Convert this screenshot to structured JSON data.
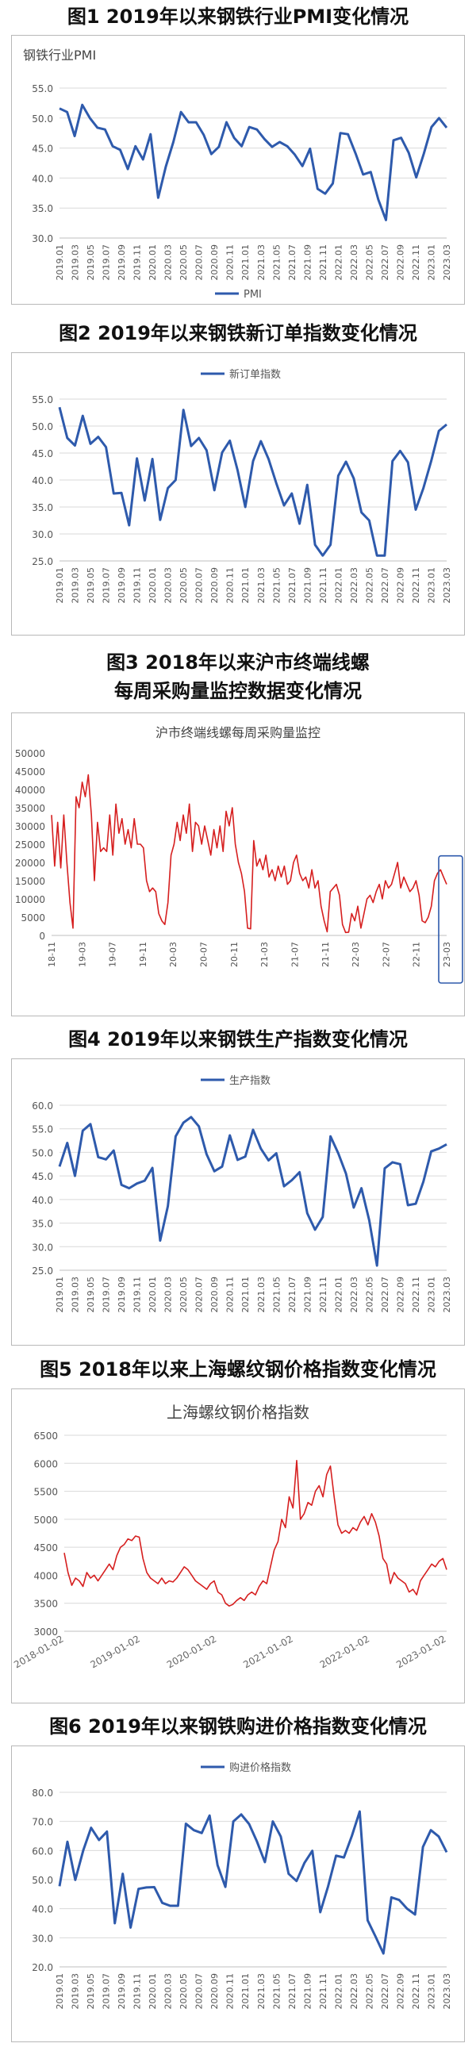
{
  "charts": [
    {
      "caption": "图1  2019年以来钢铁行业PMI变化情况",
      "panel_title": "钢铁行业PMI",
      "title_pos": "top-left",
      "legend_pos": "bottom",
      "color": "#2e5aac",
      "ylim": [
        30,
        55
      ],
      "yticks": [
        30,
        35,
        40,
        45,
        50,
        55
      ],
      "ytick_labels": [
        "30.0",
        "35.0",
        "40.0",
        "45.0",
        "50.0",
        "55.0"
      ],
      "x_labels": [
        "2019.01",
        "2019.03",
        "2019.05",
        "2019.07",
        "2019.09",
        "2019.11",
        "2020.01",
        "2020.03",
        "2020.05",
        "2020.07",
        "2020.09",
        "2020.11",
        "2021.01",
        "2021.03",
        "2021.05",
        "2021.07",
        "2021.09",
        "2021.11",
        "2022.01",
        "2022.03",
        "2022.05",
        "2022.07",
        "2022.09",
        "2022.11",
        "2023.01",
        "2023.03"
      ],
      "x_rotate": true,
      "gridlines": true,
      "series": [
        {
          "name": "PMI",
          "values": [
            51.6,
            51.0,
            47.0,
            52.2,
            50.0,
            48.4,
            48.1,
            45.3,
            44.7,
            41.5,
            45.3,
            43.1,
            47.3,
            36.7,
            41.9,
            46.0,
            51.0,
            49.3,
            49.3,
            47.2,
            44.0,
            45.2,
            49.3,
            46.7,
            45.3,
            48.5,
            48.1,
            46.5,
            45.2,
            46.0,
            45.3,
            43.9,
            42.0,
            44.9,
            38.2,
            37.4,
            39.1,
            47.5,
            47.3,
            44.1,
            40.6,
            41.0,
            36.4,
            33.0,
            46.3,
            46.7,
            44.2,
            40.1,
            44.1,
            48.5,
            50.0,
            48.4
          ]
        }
      ],
      "chart_data": {
        "type": "line"
      }
    },
    {
      "caption": "图2  2019年以来钢铁新订单指数变化情况",
      "panel_title": "",
      "title_pos": "none",
      "legend_pos": "top",
      "color": "#2e5aac",
      "ylim": [
        25,
        55
      ],
      "yticks": [
        25,
        30,
        35,
        40,
        45,
        50,
        55
      ],
      "ytick_labels": [
        "25.0",
        "30.0",
        "35.0",
        "40.0",
        "45.0",
        "50.0",
        "55.0"
      ],
      "x_labels": [
        "2019.01",
        "2019.03",
        "2019.05",
        "2019.07",
        "2019.09",
        "2019.11",
        "2020.01",
        "2020.03",
        "2020.05",
        "2020.07",
        "2020.09",
        "2020.11",
        "2021.01",
        "2021.03",
        "2021.05",
        "2021.07",
        "2021.09",
        "2021.11",
        "2022.01",
        "2022.03",
        "2022.05",
        "2022.07",
        "2022.09",
        "2022.11",
        "2023.01",
        "2023.03"
      ],
      "x_rotate": true,
      "gridlines": true,
      "series": [
        {
          "name": "新订单指数",
          "values": [
            53.5,
            47.8,
            46.4,
            51.9,
            46.7,
            48.0,
            46.1,
            37.5,
            37.6,
            31.6,
            44.0,
            36.2,
            43.9,
            32.6,
            38.5,
            40.0,
            53.0,
            46.3,
            47.8,
            45.5,
            38.1,
            45.1,
            47.3,
            41.8,
            35.0,
            43.5,
            47.2,
            43.9,
            39.4,
            35.3,
            37.5,
            31.9,
            39.1,
            28.0,
            26.0,
            28.0,
            40.8,
            43.4,
            40.3,
            34.0,
            32.5,
            26.0,
            26.0,
            43.5,
            45.4,
            43.3,
            34.5,
            38.5,
            43.5,
            49.1,
            50.3
          ]
        }
      ],
      "chart_data": {
        "type": "line"
      }
    },
    {
      "caption": "图3  2018年以来沪市终端线螺\n每周采购量监控数据变化情况",
      "panel_title": "沪市终端线螺每周采购量监控",
      "title_pos": "top-center",
      "legend_pos": "none",
      "color": "#d61f1f",
      "ylim": [
        0,
        50000
      ],
      "yticks": [
        0,
        5000,
        10000,
        15000,
        20000,
        25000,
        30000,
        35000,
        40000,
        45000,
        50000
      ],
      "ytick_labels": [
        "0",
        "5000",
        "10000",
        "15000",
        "20000",
        "25000",
        "30000",
        "35000",
        "40000",
        "45000",
        "50000"
      ],
      "x_labels": [
        "18-11",
        "19-03",
        "19-07",
        "19-11",
        "20-03",
        "20-07",
        "20-11",
        "21-03",
        "21-07",
        "21-11",
        "22-03",
        "22-07",
        "22-11",
        "23-03"
      ],
      "x_rotate": true,
      "gridlines": false,
      "highlight_last": true,
      "series": [
        {
          "name": "",
          "values": [
            33000,
            19000,
            31000,
            18500,
            33000,
            20000,
            9000,
            2000,
            38000,
            35000,
            42000,
            38000,
            44000,
            33000,
            15000,
            31000,
            23000,
            24000,
            23000,
            33000,
            22000,
            36000,
            28000,
            32000,
            25000,
            29000,
            24000,
            32000,
            25000,
            25000,
            24000,
            15000,
            12000,
            13000,
            12000,
            6000,
            4000,
            3000,
            9000,
            22000,
            25000,
            31000,
            26000,
            33000,
            28000,
            36000,
            23000,
            31000,
            30000,
            25000,
            30000,
            26000,
            22000,
            29000,
            24000,
            30000,
            23000,
            34000,
            30000,
            35000,
            25000,
            20000,
            17000,
            12000,
            2000,
            1800,
            26000,
            19000,
            21000,
            18000,
            22000,
            16000,
            18000,
            15000,
            19000,
            16000,
            19000,
            14000,
            15000,
            20000,
            22000,
            17000,
            15000,
            16000,
            13000,
            18000,
            13000,
            15000,
            8000,
            4000,
            1000,
            12000,
            13000,
            14000,
            11000,
            3000,
            800,
            900,
            6000,
            4000,
            8000,
            2000,
            6000,
            10000,
            11000,
            9000,
            12000,
            14000,
            10000,
            15000,
            13000,
            14000,
            17000,
            20000,
            13000,
            16000,
            14000,
            12000,
            13000,
            15000,
            11000,
            4000,
            3500,
            5000,
            8000,
            15000,
            17000,
            18000,
            16000,
            14000
          ]
        }
      ],
      "chart_data": {
        "type": "line"
      }
    },
    {
      "caption": "图4  2019年以来钢铁生产指数变化情况",
      "panel_title": "",
      "title_pos": "none",
      "legend_pos": "top",
      "color": "#2e5aac",
      "ylim": [
        25,
        60
      ],
      "yticks": [
        25,
        30,
        35,
        40,
        45,
        50,
        55,
        60
      ],
      "ytick_labels": [
        "25.0",
        "30.0",
        "35.0",
        "40.0",
        "45.0",
        "50.0",
        "55.0",
        "60.0"
      ],
      "x_labels": [
        "2019.01",
        "2019.03",
        "2019.05",
        "2019.07",
        "2019.09",
        "2019.11",
        "2020.01",
        "2020.03",
        "2020.05",
        "2020.07",
        "2020.09",
        "2020.11",
        "2021.01",
        "2021.03",
        "2021.05",
        "2021.07",
        "2021.09",
        "2021.11",
        "2022.01",
        "2022.03",
        "2022.05",
        "2022.07",
        "2022.09",
        "2022.11",
        "2023.01",
        "2023.03"
      ],
      "x_rotate": true,
      "gridlines": true,
      "series": [
        {
          "name": "生产指数",
          "values": [
            47.0,
            52.0,
            45.0,
            54.6,
            56.0,
            49.0,
            48.5,
            50.4,
            43.1,
            42.4,
            43.4,
            44.0,
            46.7,
            31.3,
            38.6,
            53.4,
            56.3,
            57.5,
            55.5,
            49.6,
            46.0,
            47.0,
            53.6,
            48.4,
            49.1,
            54.8,
            50.8,
            48.3,
            49.8,
            42.8,
            44.1,
            45.8,
            37.1,
            33.6,
            36.3,
            53.4,
            49.8,
            45.5,
            38.3,
            42.4,
            35.6,
            26.0,
            46.6,
            47.9,
            47.5,
            38.8,
            39.1,
            43.8,
            50.2,
            50.8,
            51.7
          ]
        }
      ],
      "chart_data": {
        "type": "line"
      }
    },
    {
      "caption": "图5  2018年以来上海螺纹钢价格指数变化情况",
      "panel_title": "上海螺纹钢价格指数",
      "title_pos": "top-center",
      "legend_pos": "none",
      "color": "#d61f1f",
      "ylim": [
        3000,
        6500
      ],
      "yticks": [
        3000,
        3500,
        4000,
        4500,
        5000,
        5500,
        6000,
        6500
      ],
      "ytick_labels": [
        "3000",
        "3500",
        "4000",
        "4500",
        "5000",
        "5500",
        "6000",
        "6500"
      ],
      "x_labels": [
        "2018-01-02",
        "2019-01-02",
        "2020-01-02",
        "2021-01-02",
        "2022-01-02",
        "2023-01-02"
      ],
      "x_rotate": "slant",
      "gridlines": true,
      "series": [
        {
          "name": "",
          "values": [
            4400,
            4050,
            3820,
            3950,
            3900,
            3800,
            4050,
            3950,
            4000,
            3900,
            4000,
            4100,
            4200,
            4100,
            4350,
            4500,
            4550,
            4650,
            4620,
            4700,
            4680,
            4300,
            4050,
            3950,
            3900,
            3850,
            3950,
            3850,
            3900,
            3880,
            3950,
            4050,
            4150,
            4100,
            4000,
            3900,
            3850,
            3800,
            3750,
            3850,
            3900,
            3700,
            3650,
            3500,
            3450,
            3480,
            3550,
            3600,
            3550,
            3650,
            3700,
            3650,
            3800,
            3900,
            3850,
            4150,
            4450,
            4600,
            5000,
            4850,
            5400,
            5200,
            6050,
            5000,
            5100,
            5300,
            5250,
            5500,
            5600,
            5400,
            5800,
            5950,
            5400,
            4900,
            4750,
            4800,
            4750,
            4850,
            4800,
            4950,
            5050,
            4900,
            5100,
            4950,
            4700,
            4300,
            4200,
            3850,
            4050,
            3950,
            3900,
            3850,
            3700,
            3750,
            3650,
            3900,
            4000,
            4100,
            4200,
            4150,
            4250,
            4300,
            4100
          ]
        }
      ],
      "chart_data": {
        "type": "line"
      }
    },
    {
      "caption": "图6  2019年以来钢铁购进价格指数变化情况",
      "panel_title": "",
      "title_pos": "none",
      "legend_pos": "top",
      "color": "#2e5aac",
      "ylim": [
        20,
        80
      ],
      "yticks": [
        20,
        30,
        40,
        50,
        60,
        70,
        80
      ],
      "ytick_labels": [
        "20.0",
        "30.0",
        "40.0",
        "50.0",
        "60.0",
        "70.0",
        "80.0"
      ],
      "x_labels": [
        "2019.01",
        "2019.03",
        "2019.05",
        "2019.07",
        "2019.09",
        "2019.11",
        "2020.01",
        "2020.03",
        "2020.05",
        "2020.07",
        "2020.09",
        "2020.11",
        "2021.01",
        "2021.03",
        "2021.05",
        "2021.07",
        "2021.09",
        "2021.11",
        "2022.01",
        "2022.03",
        "2022.05",
        "2022.07",
        "2022.09",
        "2022.11",
        "2023.01",
        "2023.03"
      ],
      "x_rotate": true,
      "gridlines": true,
      "series": [
        {
          "name": "购进价格指数",
          "values": [
            47.7,
            63.0,
            49.9,
            60.0,
            67.8,
            63.6,
            66.5,
            35.0,
            52.0,
            33.5,
            46.8,
            47.3,
            47.4,
            42.0,
            41.0,
            41.0,
            69.2,
            67.0,
            66.0,
            72.0,
            55.0,
            47.5,
            70.0,
            72.4,
            69.1,
            63.0,
            56.0,
            70.0,
            64.8,
            52.0,
            49.5,
            55.7,
            59.9,
            38.8,
            47.7,
            58.2,
            57.6,
            65.0,
            73.4,
            36.0,
            30.4,
            24.6,
            43.9,
            43.0,
            40.0,
            38.0,
            61.2,
            67.0,
            64.8,
            59.4
          ]
        }
      ],
      "chart_data": {
        "type": "line"
      }
    }
  ]
}
